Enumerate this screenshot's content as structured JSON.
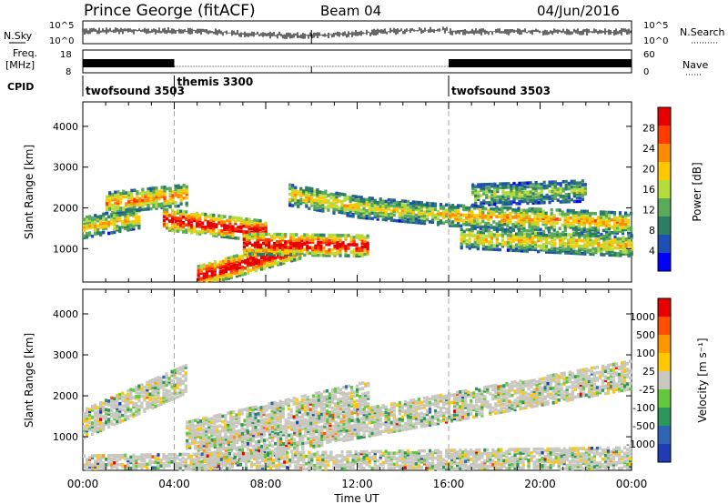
{
  "header": {
    "station": "Prince George (fitACF)",
    "beam": "Beam 04",
    "date": "04/Jun/2016"
  },
  "noise_panel": {
    "left_label": "N.Sky",
    "right_label": "N.Search",
    "left_ticks": [
      "10^5",
      "10^0"
    ],
    "right_ticks": [
      "10^5",
      "10^0"
    ]
  },
  "freq_panel": {
    "left_label_1": "Freq.",
    "left_label_2": "[MHz]",
    "right_label": "Nave",
    "left_ticks": [
      "18",
      "8"
    ],
    "right_ticks": [
      "60",
      "0"
    ]
  },
  "cpid": {
    "label": "CPID",
    "segments": [
      {
        "name": "twofsound 3503",
        "start_hour": 0,
        "end_hour": 4
      },
      {
        "name": "themis 3300",
        "start_hour": 4,
        "end_hour": 16
      },
      {
        "name": "twofsound 3503",
        "start_hour": 16,
        "end_hour": 24
      }
    ]
  },
  "chart_data": [
    {
      "type": "heatmap",
      "name": "Power",
      "ylabel": "Slant Range [km]",
      "y_ticks": [
        1000,
        2000,
        3000,
        4000
      ],
      "ylim": [
        180,
        4600
      ],
      "x_ticks": [
        "00:00",
        "04:00",
        "08:00",
        "12:00",
        "16:00",
        "20:00",
        "00:00"
      ],
      "xlim_hours": [
        0,
        24
      ],
      "colorbar": {
        "label": "Power [dB]",
        "ticks": [
          28,
          24,
          20,
          16,
          12,
          8,
          4
        ],
        "range": [
          0,
          32
        ],
        "colors": [
          "#0000ff",
          "#1e50b4",
          "#2d7d64",
          "#5aaa5a",
          "#b4dc3c",
          "#ffc800",
          "#ff8c00",
          "#ff3c00",
          "#e60000"
        ]
      },
      "bands": [
        {
          "start_hour": 0.0,
          "end_hour": 2.5,
          "r_start_km": 1500,
          "r_end_km": 1750,
          "level": 0.55
        },
        {
          "start_hour": 1.0,
          "end_hour": 4.5,
          "r_start_km": 2100,
          "r_end_km": 2300,
          "level": 0.65
        },
        {
          "start_hour": 3.5,
          "end_hour": 8.0,
          "r_start_km": 1700,
          "r_end_km": 1400,
          "level": 0.9
        },
        {
          "start_hour": 5.0,
          "end_hour": 9.5,
          "r_start_km": 300,
          "r_end_km": 1000,
          "level": 0.95
        },
        {
          "start_hour": 7.0,
          "end_hour": 12.5,
          "r_start_km": 1100,
          "r_end_km": 1050,
          "level": 0.9
        },
        {
          "start_hour": 9.0,
          "end_hour": 12.0,
          "r_start_km": 2300,
          "r_end_km": 2000,
          "level": 0.55
        },
        {
          "start_hour": 12.0,
          "end_hour": 16.0,
          "r_start_km": 2000,
          "r_end_km": 1800,
          "level": 0.5
        },
        {
          "start_hour": 16.0,
          "end_hour": 24.0,
          "r_start_km": 1800,
          "r_end_km": 1600,
          "level": 0.6
        },
        {
          "start_hour": 16.5,
          "end_hour": 24.0,
          "r_start_km": 1250,
          "r_end_km": 1050,
          "level": 0.55
        },
        {
          "start_hour": 17.0,
          "end_hour": 22.0,
          "r_start_km": 2300,
          "r_end_km": 2400,
          "level": 0.4
        }
      ]
    },
    {
      "type": "heatmap",
      "name": "Velocity",
      "ylabel": "Slant Range [km]",
      "y_ticks": [
        1000,
        2000,
        3000,
        4000
      ],
      "ylim": [
        180,
        4600
      ],
      "x_ticks": [
        "00:00",
        "04:00",
        "08:00",
        "12:00",
        "16:00",
        "20:00",
        "00:00"
      ],
      "xlim_hours": [
        0,
        24
      ],
      "xlabel": "Time UT",
      "colorbar": {
        "label": "Velocity [m s⁻¹]",
        "ticks": [
          1000,
          500,
          100,
          25,
          -25,
          -100,
          -500,
          -1000
        ],
        "colors": [
          "#1e3cb4",
          "#2d64b4",
          "#2d965a",
          "#64c83c",
          "#c8c8c0",
          "#ffc800",
          "#ff9600",
          "#ff5000",
          "#e60000"
        ]
      },
      "bands": [
        {
          "start_hour": 0.0,
          "end_hour": 4.5,
          "r_start_km": 1300,
          "r_end_km": 2400,
          "level": 0.5
        },
        {
          "start_hour": 4.5,
          "end_hour": 12.5,
          "r_start_km": 1000,
          "r_end_km": 2000,
          "level": 0.5
        },
        {
          "start_hour": 5.0,
          "end_hour": 12.0,
          "r_start_km": 500,
          "r_end_km": 1300,
          "level": 0.7
        },
        {
          "start_hour": 12.0,
          "end_hour": 24.0,
          "r_start_km": 1300,
          "r_end_km": 2500,
          "level": 0.5
        },
        {
          "start_hour": 0.0,
          "end_hour": 24.0,
          "r_start_km": 180,
          "r_end_km": 380,
          "level": 0.3
        }
      ]
    }
  ]
}
